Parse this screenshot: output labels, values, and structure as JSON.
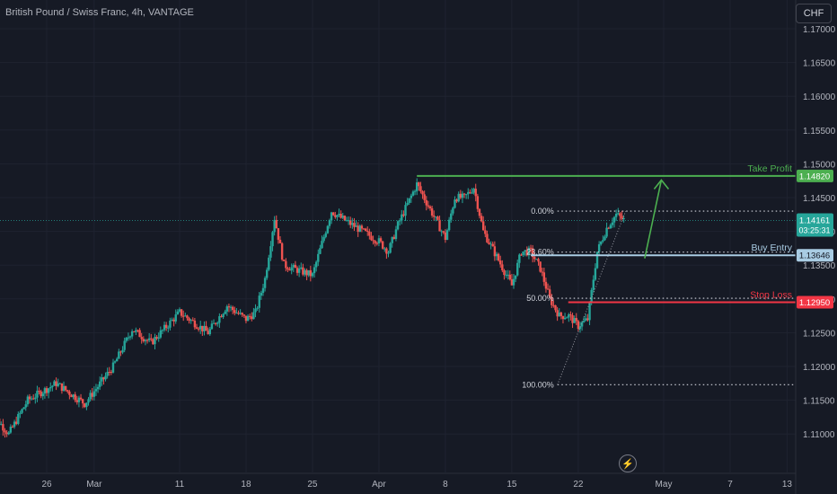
{
  "header": {
    "title": "British Pound / Swiss Franc, 4h, VANTAGE",
    "currency_button": "CHF"
  },
  "colors": {
    "background": "#161a25",
    "grid": "#1f2330",
    "axis_text": "#b2b5be",
    "up": "#26a69a",
    "down": "#ef5350",
    "take_profit": "#4caf50",
    "entry": "#a9cce3",
    "stop": "#f23645",
    "current": "#26a69a"
  },
  "icons": {
    "flash": "lightning-icon"
  },
  "chart_data": {
    "type": "candlestick",
    "title": "British Pound / Swiss Franc, 4h, VANTAGE",
    "y_ticks": [
      "1.17000",
      "1.16500",
      "1.16000",
      "1.15500",
      "1.15000",
      "1.14500",
      "1.14000",
      "1.13500",
      "1.13000",
      "1.12500",
      "1.12000",
      "1.11500",
      "1.11000"
    ],
    "x_ticks": [
      "26",
      "Mar",
      "11",
      "18",
      "25",
      "Apr",
      "8",
      "15",
      "22",
      "May",
      "7",
      "13"
    ],
    "ylim": [
      1.1075,
      1.1725
    ],
    "price_path": [
      [
        "Feb 20",
        1.1135
      ],
      [
        "Feb 22",
        1.11
      ],
      [
        "Feb 24",
        1.115
      ],
      [
        "Feb 27",
        1.1175
      ],
      [
        "Mar 1",
        1.1145
      ],
      [
        "Mar 4",
        1.12
      ],
      [
        "Mar 6",
        1.1255
      ],
      [
        "Mar 8",
        1.1235
      ],
      [
        "Mar 11",
        1.128
      ],
      [
        "Mar 13",
        1.126
      ],
      [
        "Mar 14",
        1.125
      ],
      [
        "Mar 16",
        1.129
      ],
      [
        "Mar 18",
        1.127
      ],
      [
        "Mar 19",
        1.128
      ],
      [
        "Mar 20",
        1.133
      ],
      [
        "Mar 21",
        1.142
      ],
      [
        "Mar 22",
        1.135
      ],
      [
        "Mar 25",
        1.1335
      ],
      [
        "Mar 27",
        1.143
      ],
      [
        "Mar 28",
        1.142
      ],
      [
        "Apr 1",
        1.1385
      ],
      [
        "Apr 2",
        1.137
      ],
      [
        "Apr 3",
        1.141
      ],
      [
        "Apr 4",
        1.144
      ],
      [
        "Apr 5",
        1.147
      ],
      [
        "Apr 8",
        1.139
      ],
      [
        "Apr 9",
        1.145
      ],
      [
        "Apr 10",
        1.145
      ],
      [
        "Apr 11",
        1.1465
      ],
      [
        "Apr 12",
        1.14
      ],
      [
        "Apr 15",
        1.132
      ],
      [
        "Apr 16",
        1.137
      ],
      [
        "Apr 17",
        1.137
      ],
      [
        "Apr 18",
        1.1345
      ],
      [
        "Apr 19",
        1.13
      ],
      [
        "Apr 20",
        1.1275
      ],
      [
        "Apr 21",
        1.1275
      ],
      [
        "Apr 22",
        1.126
      ],
      [
        "Apr 23",
        1.127
      ],
      [
        "Apr 24",
        1.137
      ],
      [
        "Apr 25",
        1.1405
      ],
      [
        "Apr 26",
        1.1425
      ],
      [
        "Apr 27",
        1.1415
      ]
    ],
    "fibonacci": [
      {
        "label": "0.00%",
        "price": 1.143
      },
      {
        "label": "23.60%",
        "price": 1.13693
      },
      {
        "label": "50.00%",
        "price": 1.1301
      },
      {
        "label": "100.00%",
        "price": 1.1173
      }
    ],
    "levels": [
      {
        "name": "Take Profit",
        "price": 1.1482,
        "label": "1.14820",
        "color": "#4caf50"
      },
      {
        "name": "Buy Entry",
        "price": 1.13646,
        "label": "1.13646",
        "color": "#a9cce3"
      },
      {
        "name": "Stop Loss",
        "price": 1.1295,
        "label": "1.12950",
        "color": "#f23645"
      }
    ],
    "current_price": {
      "price": 1.14161,
      "label": "1.14161",
      "countdown": "03:25:31"
    },
    "projection": {
      "from": [
        "Apr 29",
        1.136
      ],
      "to": [
        "Apr 30",
        1.148
      ]
    }
  }
}
